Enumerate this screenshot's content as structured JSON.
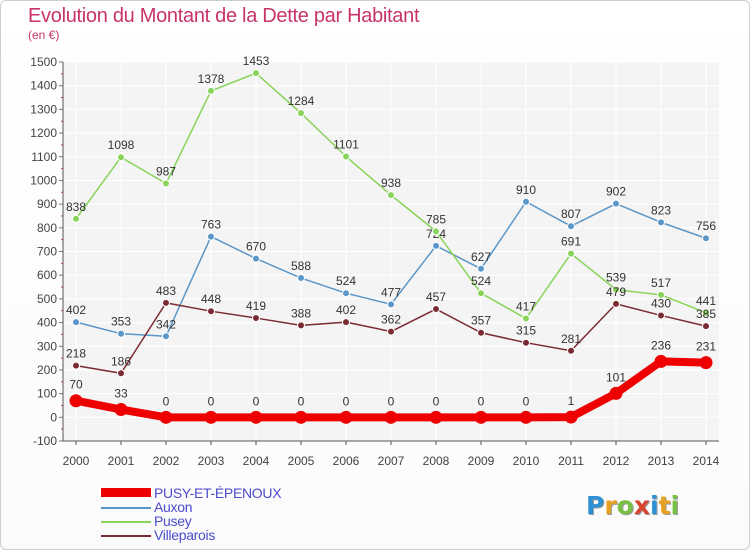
{
  "header": {
    "title": "Evolution du Montant de la Dette par Habitant",
    "subtitle": "(en €)"
  },
  "chart_data": {
    "type": "line",
    "title": "Evolution du Montant de la Dette par Habitant",
    "ylabel": "(en €)",
    "xlabel": "",
    "ylim": [
      -100,
      1500
    ],
    "y_ticks": [
      -100,
      0,
      100,
      200,
      300,
      400,
      500,
      600,
      700,
      800,
      900,
      1000,
      1100,
      1200,
      1300,
      1400,
      1500
    ],
    "grid": true,
    "legend_position": "bottom-left",
    "categories": [
      "2000",
      "2001",
      "2002",
      "2003",
      "2004",
      "2005",
      "2006",
      "2007",
      "2008",
      "2009",
      "2010",
      "2011",
      "2012",
      "2013",
      "2014"
    ],
    "series": [
      {
        "name": "PUSY-ET-ÉPENOUX",
        "color": "#ee0000",
        "values": [
          70,
          33,
          0,
          0,
          0,
          0,
          0,
          0,
          0,
          0,
          0,
          1,
          101,
          236,
          231
        ]
      },
      {
        "name": "Auxon",
        "color": "#5a96c8",
        "values": [
          402,
          353,
          342,
          763,
          670,
          588,
          524,
          477,
          724,
          627,
          910,
          807,
          902,
          823,
          756
        ]
      },
      {
        "name": "Pusey",
        "color": "#88d45a",
        "values": [
          838,
          1098,
          987,
          1378,
          1453,
          1284,
          1101,
          938,
          785,
          524,
          417,
          691,
          539,
          517,
          441
        ]
      },
      {
        "name": "Villeparois",
        "color": "#7a2a32",
        "values": [
          218,
          186,
          483,
          448,
          419,
          388,
          402,
          362,
          457,
          357,
          315,
          281,
          479,
          430,
          385
        ]
      }
    ]
  },
  "legend": {
    "items": [
      "PUSY-ET-ÉPENOUX",
      "Auxon",
      "Pusey",
      "Villeparois"
    ]
  },
  "logo": {
    "letters": [
      "P",
      "r",
      "o",
      "x",
      "i",
      "t",
      "i"
    ],
    "colors": [
      "#2d8fd4",
      "#e8a020",
      "#79c142",
      "#d8452e",
      "#2d8fd4",
      "#e8a020",
      "#79c142"
    ]
  }
}
